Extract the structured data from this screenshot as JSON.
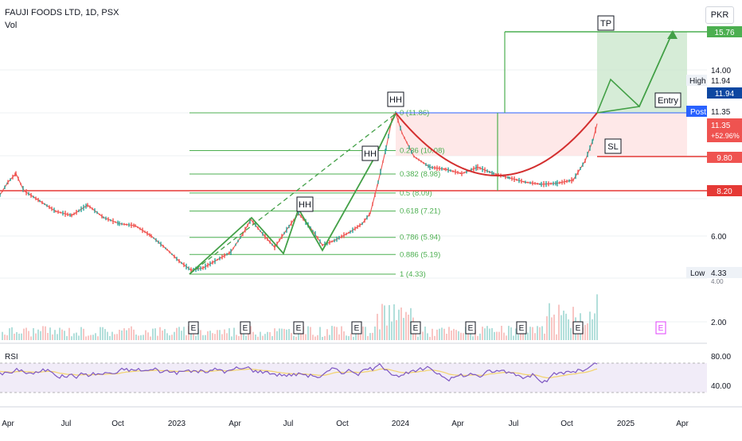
{
  "header": {
    "symbol_line": "FAUJI FOODS LTD, 1D, PSX",
    "indicator": "Vol",
    "currency": "PKR"
  },
  "colors": {
    "up": "#26a69a",
    "down": "#ef5350",
    "fib": "#4caf50",
    "support": "#e53935",
    "cup": "#d32f2f",
    "rsi_line": "#7e57c2",
    "rsi_ma": "#f3d36b",
    "post": "#2962ff"
  },
  "chart_data": {
    "type": "line",
    "title": "FAUJI FOODS LTD, 1D, PSX",
    "yaxis": {
      "ticks": [
        2.0,
        4.0,
        6.0,
        14.0
      ],
      "tick_labels": [
        "2.00",
        "4.00",
        "6.00",
        "14.00"
      ]
    },
    "xaxis": {
      "ticks": [
        "Apr",
        "Jul",
        "Oct",
        "2023",
        "Apr",
        "Jul",
        "Oct",
        "2024",
        "Apr",
        "Jul",
        "Oct",
        "2025",
        "Apr"
      ]
    },
    "price_path": [
      [
        0,
        8.0
      ],
      [
        10,
        8.6
      ],
      [
        20,
        9.0
      ],
      [
        30,
        8.2
      ],
      [
        50,
        7.7
      ],
      [
        70,
        7.2
      ],
      [
        90,
        7.0
      ],
      [
        110,
        7.5
      ],
      [
        130,
        6.9
      ],
      [
        150,
        6.6
      ],
      [
        170,
        6.5
      ],
      [
        190,
        6.0
      ],
      [
        210,
        5.4
      ],
      [
        225,
        4.9
      ],
      [
        240,
        4.5
      ],
      [
        255,
        4.6
      ],
      [
        270,
        4.9
      ],
      [
        290,
        5.3
      ],
      [
        305,
        6.1
      ],
      [
        315,
        6.8
      ],
      [
        330,
        6.1
      ],
      [
        345,
        5.5
      ],
      [
        360,
        6.3
      ],
      [
        375,
        7.1
      ],
      [
        390,
        6.4
      ],
      [
        405,
        5.6
      ],
      [
        420,
        5.8
      ],
      [
        440,
        6.2
      ],
      [
        455,
        6.6
      ],
      [
        465,
        7.1
      ],
      [
        475,
        8.6
      ],
      [
        485,
        10.2
      ],
      [
        492,
        11.5
      ],
      [
        497,
        11.86
      ],
      [
        505,
        10.9
      ],
      [
        520,
        9.8
      ],
      [
        540,
        9.3
      ],
      [
        560,
        9.2
      ],
      [
        580,
        9.0
      ],
      [
        600,
        9.3
      ],
      [
        620,
        9.0
      ],
      [
        640,
        8.8
      ],
      [
        660,
        8.6
      ],
      [
        680,
        8.5
      ],
      [
        700,
        8.55
      ],
      [
        720,
        8.7
      ],
      [
        735,
        9.6
      ],
      [
        745,
        10.6
      ],
      [
        750,
        11.35
      ]
    ],
    "fibonacci": [
      {
        "level": "0",
        "price": 11.86,
        "label": "0 (11.86)"
      },
      {
        "level": "0.236",
        "price": 10.08,
        "label": "0.236 (10.08)"
      },
      {
        "level": "0.382",
        "price": 8.98,
        "label": "0.382 (8.98)"
      },
      {
        "level": "0.5",
        "price": 8.09,
        "label": "0.5 (8.09)"
      },
      {
        "level": "0.618",
        "price": 7.21,
        "label": "0.618 (7.21)"
      },
      {
        "level": "0.786",
        "price": 5.94,
        "label": "0.786 (5.94)"
      },
      {
        "level": "0.886",
        "price": 5.19,
        "label": "0.886 (5.19)"
      },
      {
        "level": "1",
        "price": 4.33,
        "label": "1 (4.33)"
      }
    ],
    "annotations": {
      "higher_highs": [
        "HH",
        "HH",
        "HH"
      ],
      "target": "TP",
      "stop_loss": "SL",
      "entry": "Entry",
      "earnings_markers": [
        "E",
        "E",
        "E",
        "E",
        "E",
        "E",
        "E",
        "E",
        "E"
      ]
    },
    "price_labels": {
      "tp": "15.76",
      "high_text": "High",
      "high_value": "11.94",
      "high_tag": "11.94",
      "post_text": "Post",
      "post_value": "11.35",
      "last_price": "11.35",
      "last_change": "+52.96%",
      "stop": "9.80",
      "support": "8.20",
      "low_text": "Low",
      "low_value": "4.33",
      "partial_label": "4.00"
    },
    "rsi": {
      "label": "RSI",
      "ticks": [
        "80.00",
        "40.00"
      ],
      "upper_band": 70,
      "lower_band": 30
    }
  }
}
